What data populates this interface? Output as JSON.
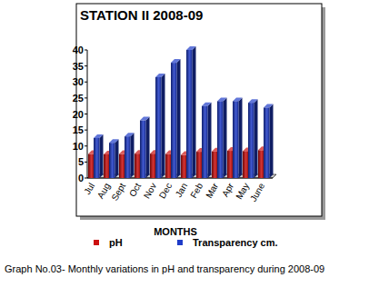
{
  "chart_data": {
    "type": "bar",
    "title": "STATION II 2008-09",
    "x_label": "MONTHS",
    "caption": "Graph No.03- Monthly variations in pH and transparency  during 2008-09",
    "categories": [
      "Jul",
      "Aug",
      "Sept",
      "Oct",
      "Nov",
      "Dec",
      "Jan",
      "Feb",
      "Mar",
      "Apr",
      "May",
      "June"
    ],
    "series": [
      {
        "name": "pH",
        "color": "#cc1010",
        "values": [
          7.5,
          7.4,
          7.5,
          7.6,
          7.6,
          7.5,
          7.2,
          8.2,
          8.3,
          8.5,
          8.4,
          8.7
        ]
      },
      {
        "name": "Transparency cm.",
        "color": "#1f3cc8",
        "values": [
          12.5,
          11,
          13,
          18,
          31.5,
          36,
          40,
          22.5,
          24,
          24,
          23.5,
          22
        ]
      }
    ],
    "ylim": [
      0,
      40
    ],
    "yticks": [
      0,
      5,
      10,
      15,
      20,
      25,
      30,
      35,
      40
    ],
    "grid": false,
    "legend": "bottom"
  }
}
